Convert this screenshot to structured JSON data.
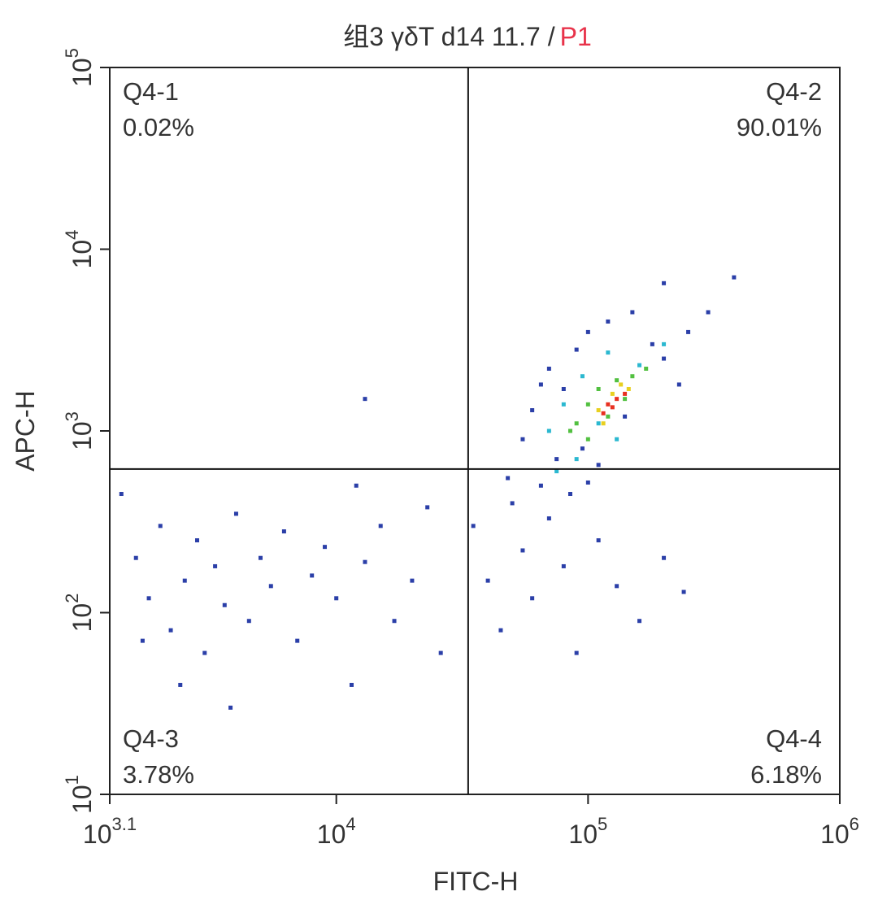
{
  "chart_data": {
    "type": "scatter",
    "title": "组3 γδT d14 11.7 /",
    "title_gate": "P1",
    "title_gate_color": "#e8334a",
    "x_label": "FITC-H",
    "y_label": "APC-H",
    "xscale": "log",
    "yscale": "log",
    "xlim": [
      1258.9,
      1000000
    ],
    "ylim": [
      10,
      100000
    ],
    "xticks": [
      {
        "value": 1258.9,
        "label": "10",
        "exponent": "3.1"
      },
      {
        "value": 10000,
        "label": "10",
        "exponent": "4"
      },
      {
        "value": 100000,
        "label": "10",
        "exponent": "5"
      },
      {
        "value": 1000000,
        "label": "10",
        "exponent": "6"
      }
    ],
    "yticks": [
      {
        "value": 10,
        "label": "10",
        "exponent": "1"
      },
      {
        "value": 100,
        "label": "10",
        "exponent": "2"
      },
      {
        "value": 1000,
        "label": "10",
        "exponent": "3"
      },
      {
        "value": 10000,
        "label": "10",
        "exponent": "4"
      },
      {
        "value": 100000,
        "label": "10",
        "exponent": "5"
      }
    ],
    "gate": {
      "x": 33400,
      "y": 617
    },
    "quadrants": [
      {
        "name": "Q4-1",
        "value": 0.02,
        "value_label": "0.02%",
        "corner": "top-left"
      },
      {
        "name": "Q4-2",
        "value": 90.01,
        "value_label": "90.01%",
        "corner": "top-right"
      },
      {
        "name": "Q4-3",
        "value": 3.78,
        "value_label": "3.78%",
        "corner": "bottom-left"
      },
      {
        "name": "Q4-4",
        "value": 6.18,
        "value_label": "6.18%",
        "corner": "bottom-right"
      }
    ],
    "series": [
      {
        "color": "#2b3fa8",
        "x": [
          1600,
          1800,
          2000,
          2200,
          2500,
          2800,
          3000,
          3300,
          3600,
          4000,
          4500,
          5000,
          5500,
          6200,
          7000,
          8000,
          9000,
          10000,
          11500,
          13000,
          15000,
          17000,
          20000,
          23000,
          26000,
          1400,
          2400,
          3800,
          12000,
          1700,
          35000,
          40000,
          45000,
          50000,
          55000,
          60000,
          70000,
          80000,
          90000,
          110000,
          130000,
          160000,
          200000,
          240000,
          65000,
          85000,
          100000,
          48000,
          13000,
          55000,
          60000,
          70000,
          75000,
          80000,
          90000,
          100000,
          120000,
          150000,
          180000,
          200000,
          250000,
          300000,
          380000,
          200000,
          65000,
          95000,
          140000,
          230000,
          110000
        ],
        "values": [
          200,
          120,
          300,
          80,
          150,
          250,
          60,
          180,
          110,
          350,
          90,
          200,
          140,
          280,
          70,
          160,
          230,
          120,
          40,
          190,
          300,
          90,
          150,
          380,
          60,
          450,
          40,
          30,
          500,
          70,
          300,
          150,
          80,
          400,
          220,
          120,
          330,
          180,
          60,
          250,
          140,
          90,
          200,
          130,
          500,
          450,
          520,
          550,
          1500,
          900,
          1300,
          2200,
          700,
          1700,
          2800,
          3500,
          4000,
          4500,
          3000,
          2500,
          3500,
          4500,
          7000,
          6500,
          1800,
          800,
          1200,
          1800,
          650
        ]
      },
      {
        "color": "#2bb8d0",
        "x": [
          70000,
          80000,
          95000,
          120000,
          160000,
          130000,
          90000,
          200000,
          75000,
          110000
        ],
        "values": [
          1000,
          1400,
          2000,
          2700,
          2300,
          900,
          700,
          3000,
          600,
          1100
        ]
      },
      {
        "color": "#52c040",
        "x": [
          90000,
          100000,
          110000,
          130000,
          150000,
          120000,
          100000,
          140000,
          85000,
          170000
        ],
        "values": [
          1100,
          1400,
          1700,
          1900,
          2000,
          1200,
          900,
          1500,
          1000,
          2200
        ]
      },
      {
        "color": "#e8d020",
        "x": [
          110000,
          125000,
          135000,
          115000,
          145000
        ],
        "values": [
          1300,
          1600,
          1800,
          1100,
          1700
        ]
      },
      {
        "color": "#e83020",
        "x": [
          120000,
          130000,
          115000,
          140000,
          125000
        ],
        "values": [
          1400,
          1500,
          1250,
          1600,
          1350
        ]
      }
    ]
  }
}
